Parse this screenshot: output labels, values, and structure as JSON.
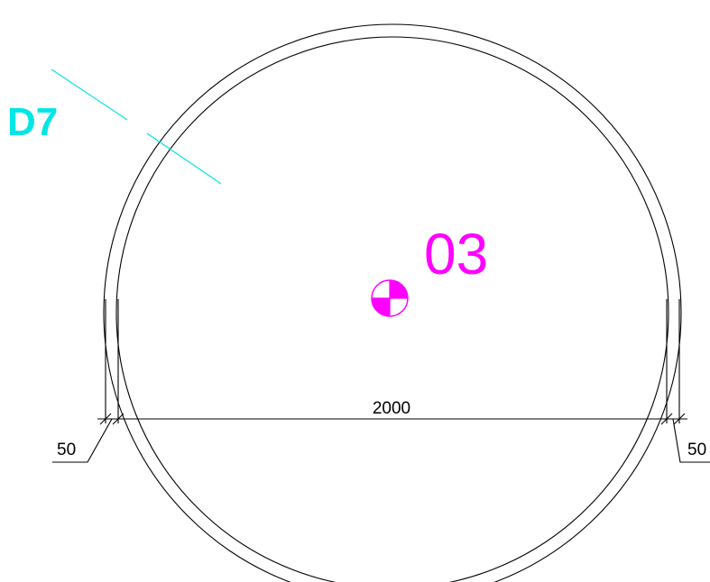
{
  "labels": {
    "section_marker": "D7",
    "room_number": "03",
    "dimension_total": "2000",
    "dimension_left": "50",
    "dimension_right": "50"
  },
  "colors": {
    "section_marker": "#00e5e5",
    "room_number": "#ff00ff",
    "centroid_symbol": "#ff00ff",
    "linework": "#000000",
    "background": "#ffffff"
  },
  "icons": {
    "centroid": "center-of-gravity-icon"
  }
}
